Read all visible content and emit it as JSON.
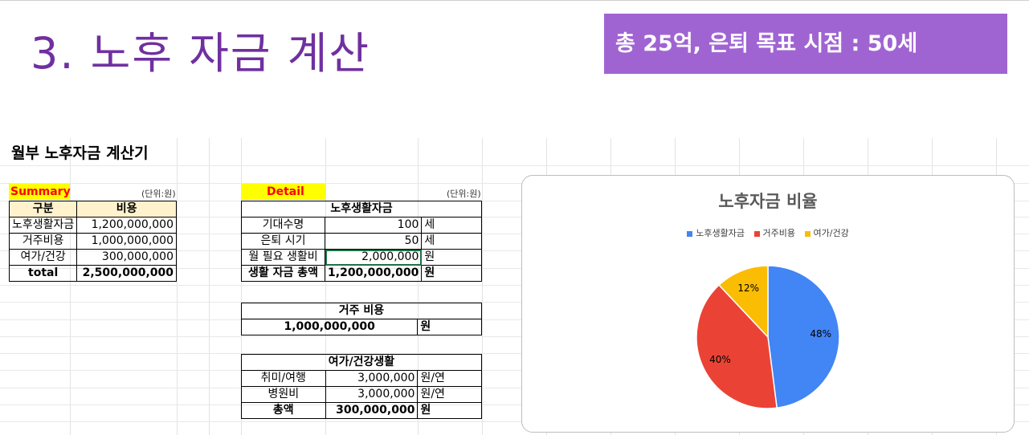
{
  "slide": {
    "title": "3. 노후 자금 계산",
    "goal_banner": "총 25억, 은퇴 목표 시점  : 50세"
  },
  "sheet": {
    "title": "월부 노후자금 계산기",
    "summary": {
      "label": "Summary",
      "unit": "(단위:원)",
      "headers": [
        "구분",
        "비용"
      ],
      "rows": [
        {
          "name": "노후생활자금",
          "value": "1,200,000,000"
        },
        {
          "name": "거주비용",
          "value": "1,000,000,000"
        },
        {
          "name": "여가/건강",
          "value": "300,000,000"
        }
      ],
      "total": {
        "name": "total",
        "value": "2,500,000,000"
      }
    },
    "detail": {
      "label": "Detail",
      "unit": "(단위:원)",
      "living": {
        "header": "노후생활자금",
        "rows": [
          {
            "name": "기대수명",
            "value": "100",
            "unit": "세"
          },
          {
            "name": "은퇴 시기",
            "value": "50",
            "unit": "세"
          },
          {
            "name": "월 필요 생활비",
            "value": "2,000,000",
            "unit": "원"
          }
        ],
        "total": {
          "name": "생활 자금 총액",
          "value": "1,200,000,000",
          "unit": "원"
        }
      },
      "housing": {
        "header": "거주 비용",
        "value": "1,000,000,000",
        "unit": "원"
      },
      "leisure": {
        "header": "여가/건강생활",
        "rows": [
          {
            "name": "취미/여행",
            "value": "3,000,000",
            "unit": "원/연"
          },
          {
            "name": "병원비",
            "value": "3,000,000",
            "unit": "원/연"
          }
        ],
        "total": {
          "name": "총액",
          "value": "300,000,000",
          "unit": "원"
        }
      }
    }
  },
  "chart_data": {
    "type": "pie",
    "title": "노후자금 비율",
    "legend_position": "top",
    "categories": [
      "노후생활자금",
      "거주비용",
      "여가/건강"
    ],
    "values": [
      48,
      40,
      12
    ],
    "labels": [
      "48%",
      "40%",
      "12%"
    ],
    "colors": [
      "#4285f4",
      "#ea4335",
      "#fbbc04"
    ]
  }
}
